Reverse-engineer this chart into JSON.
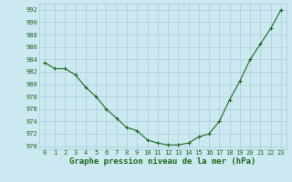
{
  "x": [
    0,
    1,
    2,
    3,
    4,
    5,
    6,
    7,
    8,
    9,
    10,
    11,
    12,
    13,
    14,
    15,
    16,
    17,
    18,
    19,
    20,
    21,
    22,
    23
  ],
  "y": [
    983.5,
    982.5,
    982.5,
    981.5,
    979.5,
    978.0,
    976.0,
    974.5,
    973.0,
    972.5,
    971.0,
    970.5,
    970.2,
    970.2,
    970.5,
    971.5,
    972.0,
    974.0,
    977.5,
    980.5,
    984.0,
    986.5,
    989.0,
    992.0
  ],
  "line_color": "#1a6b1a",
  "marker": "+",
  "marker_size": 3,
  "marker_linewidth": 0.8,
  "bg_color": "#cce8f0",
  "grid_color": "#aaccd8",
  "xlabel": "Graphe pression niveau de la mer (hPa)",
  "ylim": [
    969.5,
    993.0
  ],
  "yticks": [
    970,
    972,
    974,
    976,
    978,
    980,
    982,
    984,
    986,
    988,
    990,
    992
  ],
  "xticks": [
    0,
    1,
    2,
    3,
    4,
    5,
    6,
    7,
    8,
    9,
    10,
    11,
    12,
    13,
    14,
    15,
    16,
    17,
    18,
    19,
    20,
    21,
    22,
    23
  ],
  "tick_color": "#1a6b1a",
  "tick_fontsize": 5.0,
  "xlabel_fontsize": 6.5,
  "line_width": 0.8
}
